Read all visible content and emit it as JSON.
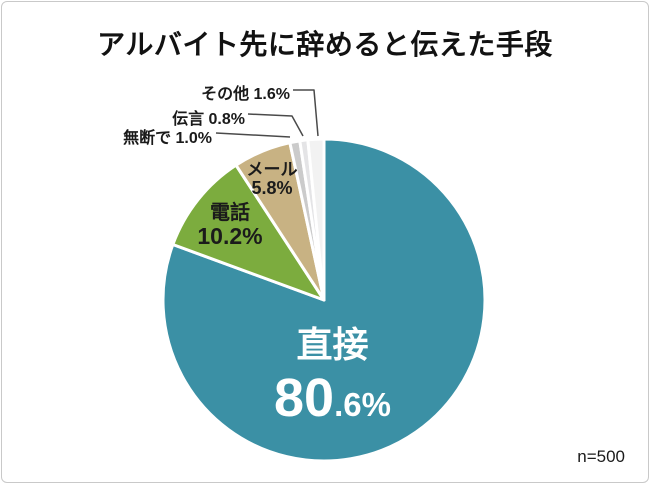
{
  "title": "アルバイト先に辞めると伝えた手段",
  "sample_size": "n=500",
  "labels": {
    "sonota": "その他 1.6%",
    "dengon": "伝言 0.8%",
    "mudan": "無断で 1.0%",
    "mail_name": "メール",
    "mail_pct": "5.8%",
    "denwa_name": "電話",
    "denwa_pct": "10.2%",
    "chokusetsu_name": "直接",
    "chokusetsu_pct_big": "80",
    "chokusetsu_pct_small": ".6%"
  },
  "chart_data": {
    "type": "pie",
    "title": "アルバイト先に辞めると伝えた手段",
    "unit": "%",
    "start_angle_deg": 0,
    "direction": "clockwise",
    "total": 100,
    "annotation": "n=500",
    "legend_position": "none",
    "slice_gap_color": "#ffffff",
    "leader_line_color": "#4a4a4a",
    "slices": [
      {
        "id": "chokusetsu",
        "label": "直接",
        "value": 80.6,
        "color": "#3B90A5",
        "text_color": "#ffffff",
        "display": "直接 80.6%"
      },
      {
        "id": "denwa",
        "label": "電話",
        "value": 10.2,
        "color": "#7CAC3E",
        "text_color": "#1b1b1b",
        "display": "電話 10.2%"
      },
      {
        "id": "mail",
        "label": "メール",
        "value": 5.8,
        "color": "#C8B283",
        "text_color": "#1b1b1b",
        "display": "メール 5.8%"
      },
      {
        "id": "mudan",
        "label": "無断で",
        "value": 1.0,
        "color": "#CBCBCB",
        "text_color": "#1a1a1a",
        "display": "無断で 1.0%"
      },
      {
        "id": "dengon",
        "label": "伝言",
        "value": 0.8,
        "color": "#E4E4E6",
        "text_color": "#1a1a1a",
        "display": "伝言 0.8%"
      },
      {
        "id": "sonota",
        "label": "その他",
        "value": 1.6,
        "color": "#F2F2F2",
        "text_color": "#1a1a1a",
        "display": "その他 1.6%"
      }
    ]
  }
}
